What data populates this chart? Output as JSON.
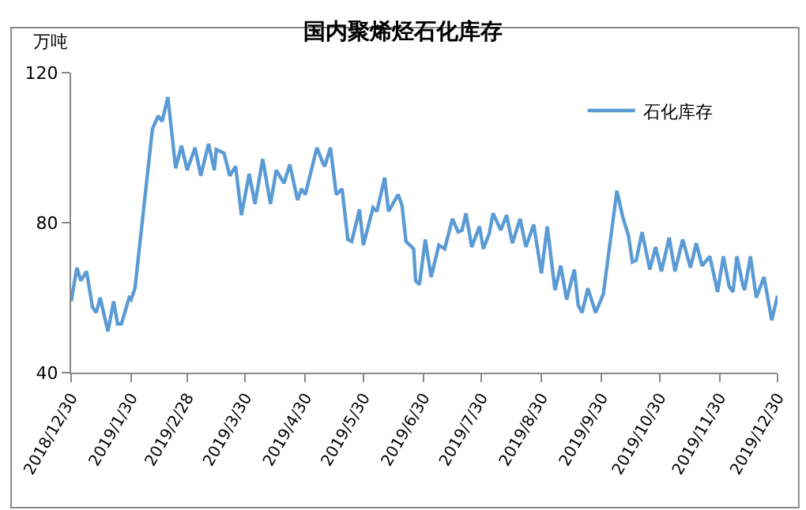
{
  "chart_data": {
    "type": "line",
    "title": "国内聚烯烃石化库存",
    "ylabel": "万吨",
    "x": [
      "2018-12-30",
      "2019-01-02",
      "2019-01-04",
      "2019-01-07",
      "2019-01-10",
      "2019-01-12",
      "2019-01-14",
      "2019-01-18",
      "2019-01-21",
      "2019-01-23",
      "2019-01-25",
      "2019-01-29",
      "2019-01-30",
      "2019-02-01",
      "2019-02-10",
      "2019-02-13",
      "2019-02-15",
      "2019-02-18",
      "2019-02-22",
      "2019-02-25",
      "2019-02-28",
      "2019-03-04",
      "2019-03-07",
      "2019-03-11",
      "2019-03-14",
      "2019-03-15",
      "2019-03-19",
      "2019-03-22",
      "2019-03-25",
      "2019-03-28",
      "2019-04-01",
      "2019-04-04",
      "2019-04-08",
      "2019-04-12",
      "2019-04-15",
      "2019-04-19",
      "2019-04-22",
      "2019-04-26",
      "2019-04-28",
      "2019-04-30",
      "2019-05-06",
      "2019-05-09",
      "2019-05-10",
      "2019-05-13",
      "2019-05-16",
      "2019-05-19",
      "2019-05-22",
      "2019-05-24",
      "2019-05-28",
      "2019-05-30",
      "2019-06-04",
      "2019-06-06",
      "2019-06-10",
      "2019-06-12",
      "2019-06-17",
      "2019-06-19",
      "2019-06-21",
      "2019-06-25",
      "2019-06-26",
      "2019-06-28",
      "2019-07-01",
      "2019-07-04",
      "2019-07-08",
      "2019-07-11",
      "2019-07-15",
      "2019-07-18",
      "2019-07-20",
      "2019-07-22",
      "2019-07-25",
      "2019-07-29",
      "2019-07-31",
      "2019-08-03",
      "2019-08-05",
      "2019-08-09",
      "2019-08-12",
      "2019-08-15",
      "2019-08-19",
      "2019-08-22",
      "2019-08-26",
      "2019-08-30",
      "2019-09-02",
      "2019-09-06",
      "2019-09-09",
      "2019-09-12",
      "2019-09-16",
      "2019-09-18",
      "2019-09-20",
      "2019-09-23",
      "2019-09-27",
      "2019-10-01",
      "2019-10-08",
      "2019-10-11",
      "2019-10-14",
      "2019-10-16",
      "2019-10-18",
      "2019-10-21",
      "2019-10-25",
      "2019-10-28",
      "2019-10-31",
      "2019-11-04",
      "2019-11-07",
      "2019-11-11",
      "2019-11-15",
      "2019-11-18",
      "2019-11-21",
      "2019-11-25",
      "2019-11-28",
      "2019-11-29",
      "2019-12-02",
      "2019-12-05",
      "2019-12-07",
      "2019-12-09",
      "2019-12-12",
      "2019-12-13",
      "2019-12-16",
      "2019-12-19",
      "2019-12-23",
      "2019-12-27",
      "2019-12-30"
    ],
    "series": [
      {
        "name": "石化库存",
        "color": "#5b9bd5",
        "values": [
          59,
          68,
          64.5,
          67,
          57.5,
          56,
          60,
          51,
          59,
          53,
          53,
          60,
          59.5,
          62.5,
          105,
          108.5,
          107,
          113.5,
          94.5,
          100.5,
          94,
          100,
          92.5,
          101,
          94,
          99.5,
          98.5,
          92.5,
          95,
          82,
          93,
          85,
          97,
          85,
          94,
          90.5,
          95.5,
          86,
          89,
          87.5,
          100,
          96,
          95,
          100,
          87.5,
          89,
          75.5,
          75,
          83.5,
          74,
          84,
          83,
          92,
          83,
          87.5,
          84.5,
          75,
          73,
          64.5,
          63.5,
          75.5,
          65.5,
          74,
          73,
          81,
          77.5,
          78,
          82.5,
          73.5,
          79,
          73,
          77,
          82.5,
          78,
          82,
          74.5,
          81,
          73.5,
          79.5,
          66.5,
          79,
          62,
          68.5,
          59.5,
          67.5,
          58,
          56,
          62.5,
          56,
          61,
          88.5,
          81.5,
          76.5,
          69.5,
          70,
          77.5,
          67.5,
          73.5,
          67,
          76,
          67,
          75.5,
          68,
          74.5,
          68.5,
          71,
          64,
          61.5,
          71,
          63,
          61.5,
          71,
          63.5,
          62,
          71,
          60,
          65.5,
          54,
          60.5
        ]
      }
    ],
    "xlim": [
      "2018-12-30",
      "2019-12-30"
    ],
    "xticks": [
      {
        "value": "2018-12-30",
        "label": "2018/12/30"
      },
      {
        "value": "2019-01-30",
        "label": "2019/1/30"
      },
      {
        "value": "2019-02-28",
        "label": "2019/2/28"
      },
      {
        "value": "2019-03-30",
        "label": "2019/3/30"
      },
      {
        "value": "2019-04-30",
        "label": "2019/4/30"
      },
      {
        "value": "2019-05-30",
        "label": "2019/5/30"
      },
      {
        "value": "2019-06-30",
        "label": "2019/6/30"
      },
      {
        "value": "2019-07-30",
        "label": "2019/7/30"
      },
      {
        "value": "2019-08-30",
        "label": "2019/8/30"
      },
      {
        "value": "2019-09-30",
        "label": "2019/9/30"
      },
      {
        "value": "2019-10-30",
        "label": "2019/10/30"
      },
      {
        "value": "2019-11-30",
        "label": "2019/11/30"
      },
      {
        "value": "2019-12-30",
        "label": "2019/12/30"
      }
    ],
    "ylim": [
      40,
      120
    ],
    "yticks": [
      40,
      80,
      120
    ],
    "legend": "top right",
    "marker": "none",
    "line_style": "solid"
  }
}
